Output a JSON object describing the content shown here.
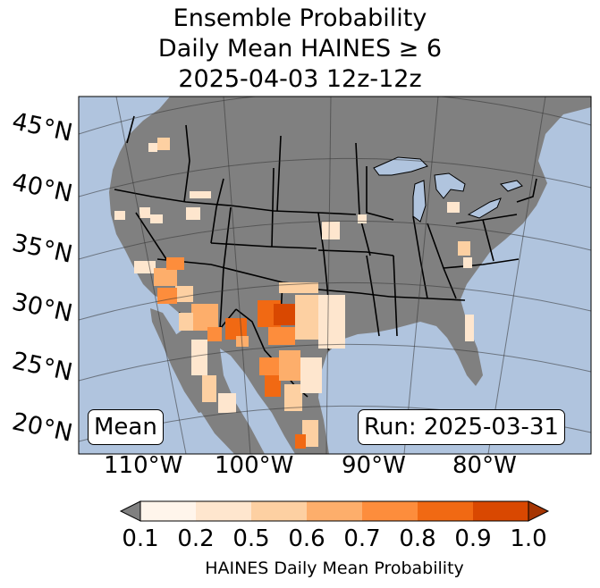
{
  "title_lines": [
    "Ensemble Probability",
    "Daily Mean HAINES ≥ 6",
    "2025-04-03 12z-12z"
  ],
  "map": {
    "lat_labels": [
      "45°N",
      "40°N",
      "35°N",
      "30°N",
      "25°N",
      "20°N"
    ],
    "lon_labels": [
      "110°W",
      "100°W",
      "90°W",
      "80°W"
    ],
    "ocean_color": "#b0c4de",
    "land_color": "#808080",
    "stat_box": "Mean",
    "run_box": "Run: 2025-03-31"
  },
  "colorbar": {
    "ticks": [
      "0.1",
      "0.2",
      "0.5",
      "0.6",
      "0.7",
      "0.8",
      "0.9",
      "1.0"
    ],
    "colors": [
      "#fff5eb",
      "#fee6ce",
      "#fdd0a2",
      "#fdae6b",
      "#fd8d3c",
      "#f16913",
      "#d94801",
      "#a63603"
    ],
    "under_color": "#808080",
    "label": "HAINES Daily Mean Probability"
  }
}
